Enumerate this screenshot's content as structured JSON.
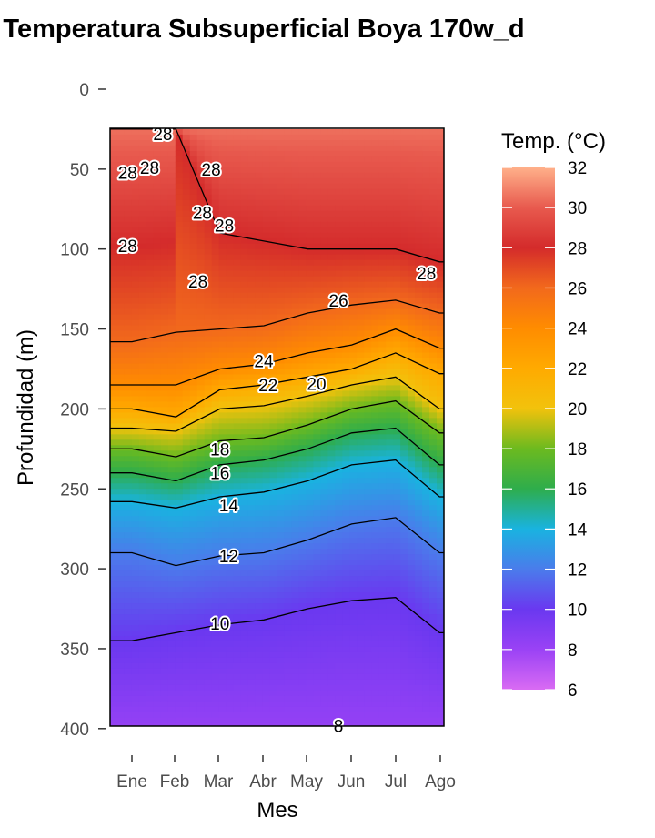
{
  "chart_data": {
    "type": "heatmap",
    "title": "Temperatura Subsuperficial Boya 170w_d",
    "xlabel": "Mes",
    "ylabel": "Profundidad (m)",
    "x_ticks": [
      "Ene",
      "Feb",
      "Mar",
      "Abr",
      "May",
      "Jun",
      "Jul",
      "Ago"
    ],
    "y_ticks": [
      0,
      50,
      100,
      150,
      200,
      250,
      300,
      350,
      400
    ],
    "ylim": [
      400,
      0
    ],
    "y_reversed": true,
    "data_depth_range": [
      25,
      400
    ],
    "legend": {
      "title": "Temp. (°C)",
      "ticks": [
        32,
        30,
        28,
        26,
        24,
        22,
        20,
        18,
        16,
        14,
        12,
        10,
        8,
        6
      ],
      "range": [
        6,
        32
      ],
      "placement": "right"
    },
    "color_stops": [
      {
        "t": 6,
        "color": "#D96BF3"
      },
      {
        "t": 8,
        "color": "#9A42F5"
      },
      {
        "t": 10,
        "color": "#6A38F0"
      },
      {
        "t": 12,
        "color": "#4A7CEB"
      },
      {
        "t": 14,
        "color": "#19B3E0"
      },
      {
        "t": 16,
        "color": "#2EAD4C"
      },
      {
        "t": 18,
        "color": "#6CBA1F"
      },
      {
        "t": 20,
        "color": "#F2C20C"
      },
      {
        "t": 22,
        "color": "#FFAA00"
      },
      {
        "t": 24,
        "color": "#FF8C00"
      },
      {
        "t": 26,
        "color": "#F2691C"
      },
      {
        "t": 28,
        "color": "#D42B2B"
      },
      {
        "t": 30,
        "color": "#E85A4E"
      },
      {
        "t": 32,
        "color": "#FFB08A"
      }
    ],
    "month_positions": [
      0.5,
      1.5,
      2.5,
      3.5,
      4.5,
      5.5,
      6.5,
      7.5
    ],
    "x_domain": [
      0.0,
      7.6
    ],
    "isotherms": [
      {
        "t": 28,
        "depth": [
          25,
          25,
          90,
          95,
          100,
          100,
          100,
          108
        ]
      },
      {
        "t": 26,
        "depth": [
          158,
          152,
          150,
          148,
          140,
          135,
          132,
          140
        ]
      },
      {
        "t": 24,
        "depth": [
          185,
          185,
          175,
          172,
          165,
          160,
          150,
          162
        ]
      },
      {
        "t": 22,
        "depth": [
          200,
          205,
          188,
          185,
          180,
          175,
          165,
          178
        ]
      },
      {
        "t": 20,
        "depth": [
          212,
          214,
          200,
          198,
          192,
          185,
          180,
          200
        ]
      },
      {
        "t": 18,
        "depth": [
          225,
          230,
          220,
          218,
          210,
          200,
          195,
          215
        ]
      },
      {
        "t": 16,
        "depth": [
          240,
          245,
          235,
          232,
          225,
          215,
          212,
          235
        ]
      },
      {
        "t": 14,
        "depth": [
          258,
          262,
          255,
          252,
          245,
          235,
          232,
          255
        ]
      },
      {
        "t": 12,
        "depth": [
          290,
          298,
          292,
          290,
          282,
          272,
          268,
          290
        ]
      },
      {
        "t": 10,
        "depth": [
          345,
          340,
          335,
          332,
          325,
          320,
          318,
          340
        ]
      },
      {
        "t": 8,
        "depth": [
          null,
          null,
          null,
          null,
          null,
          400,
          400,
          null
        ]
      }
    ],
    "contour_labels": [
      {
        "text": "28",
        "x": 0.4,
        "depth": 52
      },
      {
        "text": "28",
        "x": 0.9,
        "depth": 49
      },
      {
        "text": "28",
        "x": 1.2,
        "depth": 28
      },
      {
        "text": "28",
        "x": 0.4,
        "depth": 98
      },
      {
        "text": "28",
        "x": 2.3,
        "depth": 50
      },
      {
        "text": "28",
        "x": 2.1,
        "depth": 77
      },
      {
        "text": "28",
        "x": 2.6,
        "depth": 85
      },
      {
        "text": "28",
        "x": 2.0,
        "depth": 120
      },
      {
        "text": "28",
        "x": 7.2,
        "depth": 115
      },
      {
        "text": "26",
        "x": 5.2,
        "depth": 132
      },
      {
        "text": "24",
        "x": 3.5,
        "depth": 170
      },
      {
        "text": "22",
        "x": 3.6,
        "depth": 185
      },
      {
        "text": "20",
        "x": 4.7,
        "depth": 184
      },
      {
        "text": "18",
        "x": 2.5,
        "depth": 225
      },
      {
        "text": "16",
        "x": 2.5,
        "depth": 240
      },
      {
        "text": "14",
        "x": 2.7,
        "depth": 260
      },
      {
        "text": "12",
        "x": 2.7,
        "depth": 292
      },
      {
        "text": "10",
        "x": 2.5,
        "depth": 334
      },
      {
        "text": "8",
        "x": 5.2,
        "depth": 398
      }
    ]
  }
}
